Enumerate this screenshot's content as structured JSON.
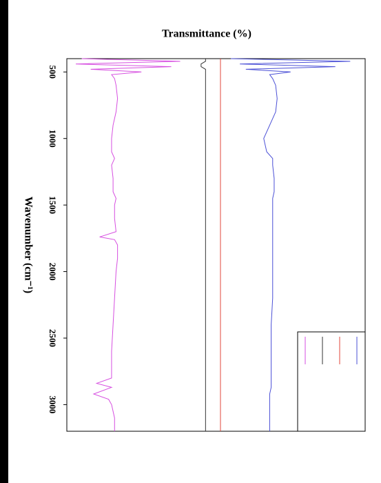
{
  "chart_data": {
    "type": "line",
    "title": "Transmittance (%)",
    "y_label": "Wavenumber (cm⁻¹)",
    "y": [
      400,
      420,
      440,
      460,
      480,
      500,
      520,
      550,
      600,
      700,
      800,
      900,
      1000,
      1100,
      1150,
      1200,
      1300,
      1400,
      1450,
      1500,
      1600,
      1700,
      1740,
      1760,
      1800,
      1900,
      2000,
      2200,
      2400,
      2600,
      2800,
      2840,
      2870,
      2920,
      2960,
      3000,
      3100,
      3200
    ],
    "ylim": [
      400,
      3200
    ],
    "yticks": [
      500,
      1000,
      1500,
      2000,
      2500,
      3000
    ],
    "xlim": [
      0,
      100
    ],
    "series": [
      {
        "color": "#d64ee0",
        "values": [
          5,
          38,
          3,
          35,
          8,
          25,
          15,
          16,
          16.5,
          17,
          16.5,
          15.5,
          15,
          15,
          16,
          15,
          15.5,
          15.5,
          16.5,
          16,
          16,
          16.5,
          11,
          16,
          17,
          17,
          16.5,
          16,
          15.5,
          15,
          15,
          10,
          15,
          9,
          14,
          15,
          16,
          16
        ]
      },
      {
        "color": "#333333",
        "values": [
          46.5,
          46.5,
          45,
          45,
          46.5,
          46.5,
          46.5,
          46.5,
          46.5,
          46.5,
          46.5,
          46.5,
          46.5,
          46.5,
          46.5,
          46.5,
          46.5,
          46.5,
          46.5,
          46.5,
          46.5,
          46.5,
          46.5,
          46.5,
          46.5,
          46.5,
          46.5,
          46.5,
          46.5,
          46.5,
          46.5,
          46.5,
          46.5,
          46.5,
          46.5,
          46.5,
          46.5,
          46.5
        ]
      },
      {
        "color": "#e0453a",
        "values": [
          51.5,
          51.5,
          51.5,
          51.5,
          51.5,
          51.5,
          51.5,
          51.5,
          51.5,
          51.5,
          51.5,
          51.5,
          51.5,
          51.5,
          51.5,
          51.5,
          51.5,
          51.5,
          51.5,
          51.5,
          51.5,
          51.5,
          51.5,
          51.5,
          51.5,
          51.5,
          51.5,
          51.5,
          51.5,
          51.5,
          51.5,
          51.5,
          51.5,
          51.5,
          51.5,
          51.5,
          51.5,
          51.5
        ]
      },
      {
        "color": "#4a4fd6",
        "values": [
          55,
          95,
          58,
          90,
          60,
          75,
          68,
          69,
          70,
          70.5,
          70,
          68,
          66,
          67,
          69,
          69,
          69.5,
          69.5,
          69,
          69,
          69,
          69,
          69,
          69,
          69,
          69,
          69,
          69,
          68.5,
          68.5,
          68.5,
          68.5,
          68.5,
          68,
          68,
          68,
          68,
          68
        ]
      }
    ]
  }
}
